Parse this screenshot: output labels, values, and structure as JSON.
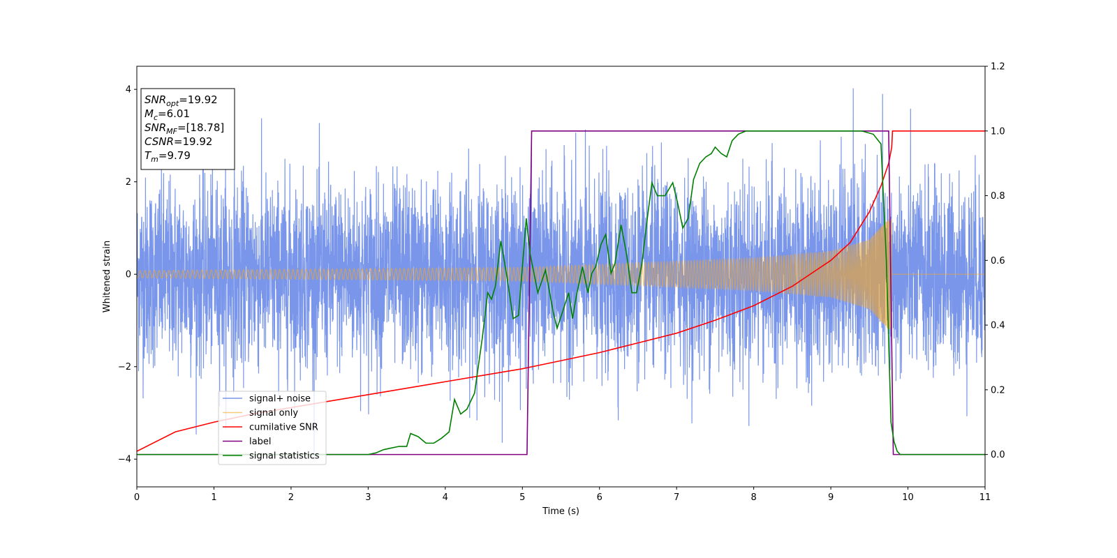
{
  "chart_data": {
    "type": "line",
    "xlabel": "Time (s)",
    "ylabel": "Whitened strain",
    "xlim": [
      0,
      11
    ],
    "ylim_left": [
      -4.6,
      4.5
    ],
    "ylim_right": [
      -0.1,
      1.2
    ],
    "xticks": [
      "0",
      "1",
      "2",
      "3",
      "4",
      "5",
      "6",
      "7",
      "8",
      "9",
      "10",
      "11"
    ],
    "yticks_left": [
      "−4",
      "−2",
      "0",
      "2",
      "4"
    ],
    "yticks_right": [
      "0.0",
      "0.2",
      "0.4",
      "0.6",
      "0.8",
      "1.0",
      "1.2"
    ],
    "grid": false,
    "legend_position": "lower-left",
    "info_box": {
      "position": "upper-left",
      "lines": [
        {
          "main": "SNR",
          "sub": "opt",
          "value": "=19.92"
        },
        {
          "main": "M",
          "sub": "c",
          "value": "=6.01"
        },
        {
          "main": "SNR",
          "sub": "MF",
          "value": "=[18.78]"
        },
        {
          "main": "CSNR",
          "sub": "",
          "value": "=19.92"
        },
        {
          "main": "T",
          "sub": "m",
          "value": "=9.79"
        }
      ]
    },
    "series": [
      {
        "name": "signal+ noise",
        "axis": "left",
        "color": "#4169e1",
        "description": "whitened noise (std ~1, peaks up to ~4.1) plus chirp signal, 0 to 11 s"
      },
      {
        "name": "signal only",
        "axis": "left",
        "color": "#f5a623",
        "chirp": {
          "t_merger": 9.79,
          "amp_start": 0.08,
          "amp_at": [
            [
              5.0,
              0.15
            ],
            [
              8.0,
              0.35
            ],
            [
              9.0,
              0.5
            ],
            [
              9.5,
              0.75
            ],
            [
              9.75,
              1.2
            ]
          ],
          "after_merger": 0
        }
      },
      {
        "name": "cumilative SNR",
        "axis": "right",
        "color": "#ff0000",
        "x": [
          0,
          0.5,
          1,
          1.5,
          2,
          2.5,
          3,
          3.5,
          4,
          4.5,
          5,
          5.5,
          6,
          6.5,
          7,
          7.5,
          8,
          8.5,
          9,
          9.25,
          9.5,
          9.65,
          9.75,
          9.79,
          9.8,
          11
        ],
        "y": [
          0.01,
          0.07,
          0.1,
          0.125,
          0.145,
          0.165,
          0.185,
          0.205,
          0.225,
          0.245,
          0.265,
          0.29,
          0.315,
          0.345,
          0.375,
          0.415,
          0.46,
          0.52,
          0.6,
          0.655,
          0.75,
          0.83,
          0.9,
          0.95,
          1.0,
          1.0
        ]
      },
      {
        "name": "label",
        "axis": "right",
        "color": "#800080",
        "x": [
          0,
          5.06,
          5.12,
          9.75,
          9.81,
          11
        ],
        "y": [
          0,
          0,
          1,
          1,
          0,
          0
        ]
      },
      {
        "name": "signal statistics",
        "axis": "right",
        "color": "#008000",
        "x": [
          0,
          0.5,
          1,
          1.5,
          2,
          2.5,
          3,
          3.1,
          3.2,
          3.3,
          3.4,
          3.5,
          3.55,
          3.65,
          3.75,
          3.85,
          3.95,
          4.05,
          4.12,
          4.2,
          4.28,
          4.38,
          4.48,
          4.55,
          4.6,
          4.65,
          4.72,
          4.8,
          4.88,
          4.95,
          5.0,
          5.05,
          5.1,
          5.15,
          5.2,
          5.3,
          5.4,
          5.45,
          5.52,
          5.6,
          5.65,
          5.7,
          5.78,
          5.85,
          5.9,
          5.95,
          6.02,
          6.08,
          6.15,
          6.2,
          6.28,
          6.35,
          6.42,
          6.48,
          6.55,
          6.62,
          6.68,
          6.75,
          6.85,
          6.95,
          7.02,
          7.08,
          7.15,
          7.22,
          7.3,
          7.38,
          7.45,
          7.5,
          7.58,
          7.65,
          7.72,
          7.8,
          7.9,
          8.0,
          8.2,
          8.5,
          8.8,
          9.0,
          9.2,
          9.4,
          9.55,
          9.65,
          9.72,
          9.78,
          9.82,
          9.86,
          9.9,
          10,
          11
        ],
        "y": [
          0,
          0.0,
          0.0,
          0.0,
          0.0,
          0.0,
          0.0,
          0.005,
          0.015,
          0.02,
          0.025,
          0.025,
          0.065,
          0.055,
          0.035,
          0.035,
          0.05,
          0.07,
          0.17,
          0.125,
          0.14,
          0.19,
          0.36,
          0.5,
          0.48,
          0.52,
          0.66,
          0.55,
          0.42,
          0.43,
          0.58,
          0.73,
          0.62,
          0.56,
          0.5,
          0.57,
          0.44,
          0.39,
          0.44,
          0.5,
          0.42,
          0.49,
          0.58,
          0.5,
          0.56,
          0.58,
          0.65,
          0.68,
          0.56,
          0.59,
          0.71,
          0.62,
          0.5,
          0.5,
          0.59,
          0.73,
          0.84,
          0.8,
          0.8,
          0.84,
          0.77,
          0.7,
          0.73,
          0.85,
          0.9,
          0.92,
          0.93,
          0.95,
          0.93,
          0.92,
          0.97,
          0.99,
          1.0,
          1.0,
          1.0,
          1.0,
          1.0,
          1.0,
          1.0,
          1.0,
          0.99,
          0.96,
          0.6,
          0.1,
          0.04,
          0.01,
          0.0,
          0.0,
          0.0
        ]
      }
    ]
  }
}
